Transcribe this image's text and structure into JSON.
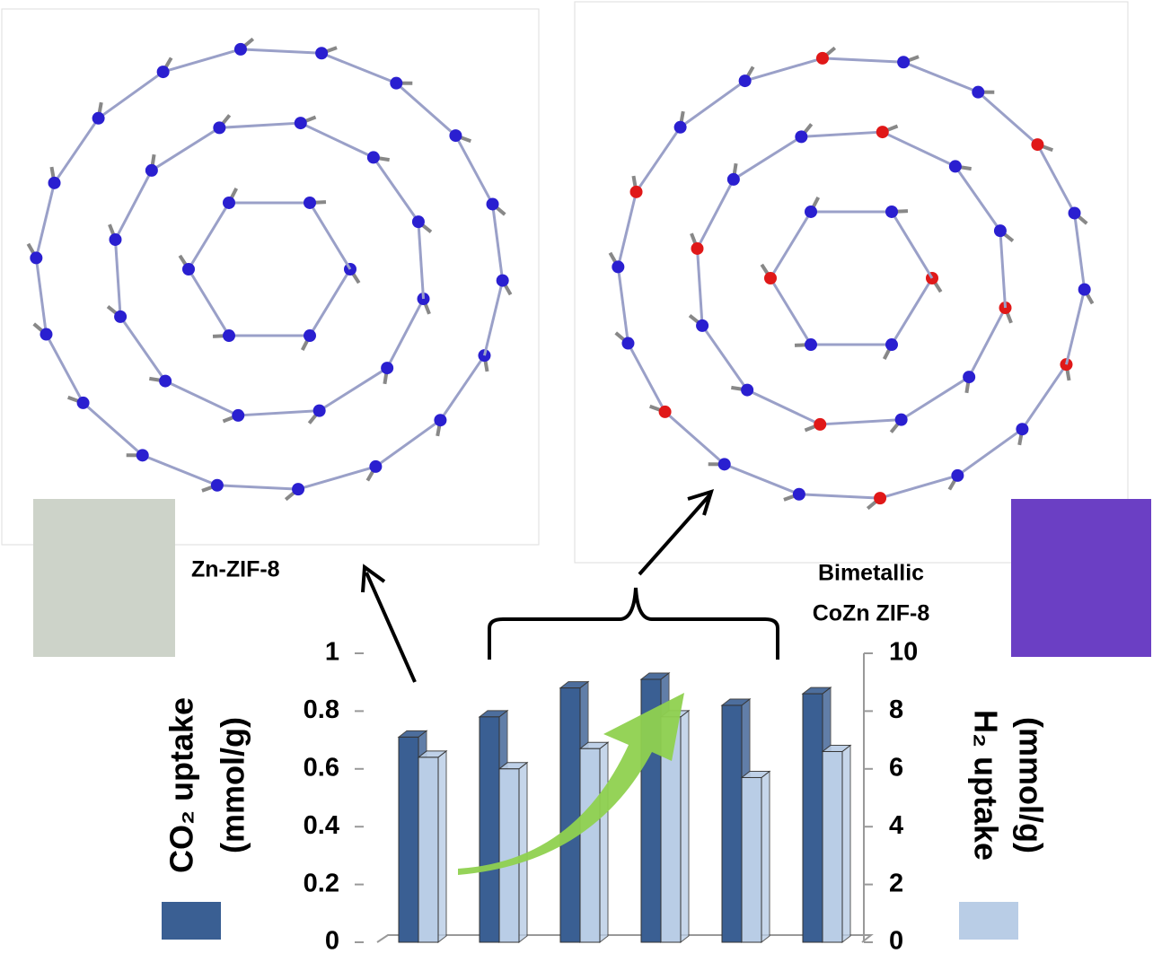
{
  "chart_data": {
    "type": "bar",
    "categories": [
      null,
      null,
      null,
      null,
      null,
      null
    ],
    "series": [
      {
        "color": "#3a5f93",
        "values": [
          0.71,
          0.78,
          0.88,
          0.91,
          0.82,
          0.86
        ]
      },
      {
        "color": "#b9cde6",
        "values": [
          6.4,
          6.0,
          6.7,
          7.8,
          5.7,
          6.6
        ],
        "axis": "y2"
      }
    ],
    "ylim": [
      0,
      1
    ],
    "yticks": [
      0,
      0.2,
      0.4,
      0.6,
      0.8,
      1
    ],
    "y2lim": [
      0,
      10
    ],
    "y2ticks": [
      0,
      2,
      4,
      6,
      8,
      10
    ],
    "ylabel": [
      "CO₂ uptake",
      "(mmol/g)"
    ],
    "y2label": [
      "H₂ uptake",
      "(mmol/g)"
    ],
    "annotations": [
      "Zn-ZIF-8",
      "Bimetallic",
      "CoZn ZIF-8"
    ]
  }
}
